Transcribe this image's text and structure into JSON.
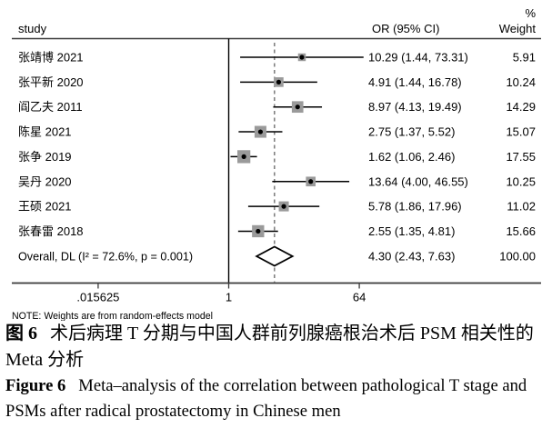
{
  "chart_data": {
    "type": "forest",
    "columns": {
      "study": "study",
      "percent": "%",
      "or_ci": "OR (95% CI)",
      "weight": "Weight"
    },
    "x_axis": {
      "scale": "log2",
      "ticks": [
        0.015625,
        1,
        64
      ],
      "tick_labels": [
        ".015625",
        "1",
        "64"
      ],
      "null_line": 1,
      "overall_ref_line": 4.3
    },
    "studies": [
      {
        "label": "张靖博 2021",
        "or": 10.29,
        "ci_low": 1.44,
        "ci_high": 73.31,
        "or_text": "10.29 (1.44, 73.31)",
        "weight": 5.91,
        "weight_text": "5.91"
      },
      {
        "label": "张平新 2020",
        "or": 4.91,
        "ci_low": 1.44,
        "ci_high": 16.78,
        "or_text": "4.91 (1.44, 16.78)",
        "weight": 10.24,
        "weight_text": "10.24"
      },
      {
        "label": "阎乙夫 2011",
        "or": 8.97,
        "ci_low": 4.13,
        "ci_high": 19.49,
        "or_text": "8.97 (4.13, 19.49)",
        "weight": 14.29,
        "weight_text": "14.29"
      },
      {
        "label": "陈星 2021",
        "or": 2.75,
        "ci_low": 1.37,
        "ci_high": 5.52,
        "or_text": "2.75 (1.37, 5.52)",
        "weight": 15.07,
        "weight_text": "15.07"
      },
      {
        "label": "张争 2019",
        "or": 1.62,
        "ci_low": 1.06,
        "ci_high": 2.46,
        "or_text": "1.62 (1.06, 2.46)",
        "weight": 17.55,
        "weight_text": "17.55"
      },
      {
        "label": "吴丹 2020",
        "or": 13.64,
        "ci_low": 4.0,
        "ci_high": 46.55,
        "or_text": "13.64 (4.00, 46.55)",
        "weight": 10.25,
        "weight_text": "10.25"
      },
      {
        "label": "王硕 2021",
        "or": 5.78,
        "ci_low": 1.86,
        "ci_high": 17.96,
        "or_text": "5.78 (1.86, 17.96)",
        "weight": 11.02,
        "weight_text": "11.02"
      },
      {
        "label": "张春雷 2018",
        "or": 2.55,
        "ci_low": 1.35,
        "ci_high": 4.81,
        "or_text": "2.55 (1.35, 4.81)",
        "weight": 15.66,
        "weight_text": "15.66"
      }
    ],
    "overall": {
      "label": "Overall, DL (I² = 72.6%, p = 0.001)",
      "or": 4.3,
      "ci_low": 2.43,
      "ci_high": 7.63,
      "or_text": "4.30 (2.43, 7.63)",
      "weight_text": "100.00"
    },
    "note": "NOTE: Weights are from random-effects model",
    "colors": {
      "marker_square": "#9a9a9a",
      "line": "#000000",
      "axis": "#3a3a3a",
      "dash": "#4a4a4a"
    }
  },
  "caption": {
    "zh": {
      "prefix": "图 6",
      "line1": "术后病理 T 分期与中国人群前列腺癌根治术后 PSM 相关性的",
      "line2": "Meta 分析"
    },
    "en": {
      "prefix": "Figure 6",
      "line1": "Meta–analysis of the correlation between pathological T stage and",
      "line2": "PSMs after radical prostatectomy in Chinese men"
    }
  }
}
